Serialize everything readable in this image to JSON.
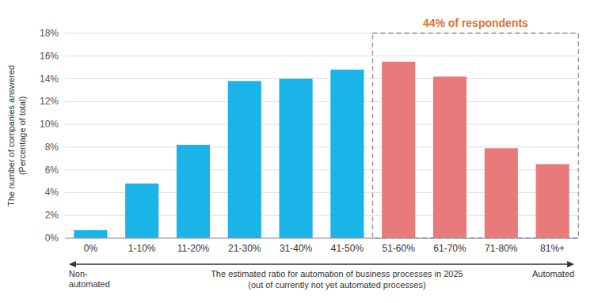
{
  "chart_data": {
    "type": "bar",
    "categories": [
      "0%",
      "1-10%",
      "11-20%",
      "21-30%",
      "31-40%",
      "41-50%",
      "51-60%",
      "61-70%",
      "71-80%",
      "81%+"
    ],
    "values": [
      0.7,
      4.8,
      8.2,
      13.8,
      14.0,
      14.8,
      15.5,
      14.2,
      7.9,
      6.5
    ],
    "colors": [
      "#1ab4e8",
      "#1ab4e8",
      "#1ab4e8",
      "#1ab4e8",
      "#1ab4e8",
      "#1ab4e8",
      "#e87a7a",
      "#e87a7a",
      "#e87a7a",
      "#e87a7a"
    ],
    "ylim": [
      0,
      18
    ],
    "yticks": [
      {
        "value": 0,
        "label": "0%"
      },
      {
        "value": 2,
        "label": "2%"
      },
      {
        "value": 4,
        "label": "4%"
      },
      {
        "value": 6,
        "label": "6%"
      },
      {
        "value": 8,
        "label": "8%"
      },
      {
        "value": 10,
        "label": "10%"
      },
      {
        "value": 12,
        "label": "12%"
      },
      {
        "value": 14,
        "label": "14%"
      },
      {
        "value": 16,
        "label": "16%"
      },
      {
        "value": 18,
        "label": "18%"
      }
    ],
    "ylabel": "The number of companies answered\n(Percentage of total)",
    "xlabel": "The estimated ratio for automation of business processes in 2025\n(out of currently not yet automated processes)",
    "annotations": [
      {
        "text": "44% of respondents",
        "color": "#e07030",
        "from": "51-60%",
        "to": "81%+"
      },
      {
        "text": "Non-\nautomated"
      },
      {
        "text": "Automated"
      }
    ],
    "grid": true
  }
}
